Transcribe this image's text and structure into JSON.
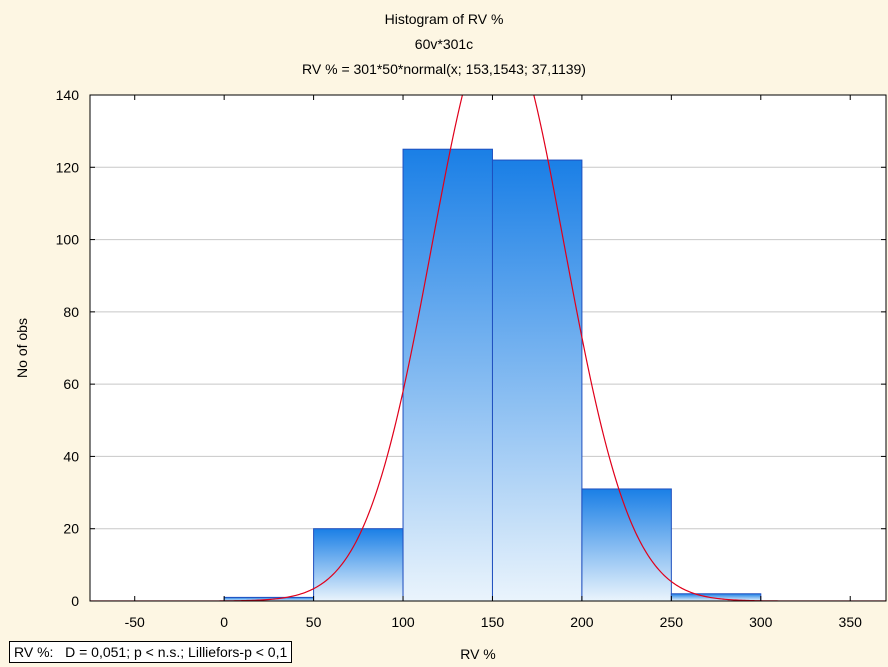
{
  "chart_data": {
    "type": "bar",
    "title": "Histogram of RV %",
    "subtitle": "60v*301c",
    "fit_formula": "RV % = 301*50*normal(x; 153,1543; 37,1139)",
    "xlabel": "RV %",
    "ylabel": "No of obs",
    "bin_width": 50,
    "bins": [
      {
        "start": -50,
        "end": 0,
        "count": 0
      },
      {
        "start": 0,
        "end": 50,
        "count": 1
      },
      {
        "start": 50,
        "end": 100,
        "count": 20
      },
      {
        "start": 100,
        "end": 150,
        "count": 125
      },
      {
        "start": 150,
        "end": 200,
        "count": 122
      },
      {
        "start": 200,
        "end": 250,
        "count": 31
      },
      {
        "start": 250,
        "end": 300,
        "count": 2
      },
      {
        "start": 300,
        "end": 350,
        "count": 0
      }
    ],
    "normal_fit": {
      "n": 301,
      "bin_width": 50,
      "mean": 153.1543,
      "sd": 37.1139
    },
    "xlim": [
      -75,
      370
    ],
    "ylim": [
      0,
      140
    ],
    "xticks": [
      "-50",
      "0",
      "50",
      "100",
      "150",
      "200",
      "250",
      "300",
      "350"
    ],
    "yticks": [
      "0",
      "20",
      "40",
      "60",
      "80",
      "100",
      "120",
      "140"
    ],
    "grid": true,
    "colors": {
      "bar_top": "#1a7fe6",
      "bar_bottom": "#e8f2fb",
      "bar_edge": "#1f4fbf",
      "fit_line": "#e0001b",
      "grid": "#c8c8c8"
    },
    "stats_text": "RV %:   D = 0,051; p < n.s.; Lilliefors-p < 0,1"
  }
}
